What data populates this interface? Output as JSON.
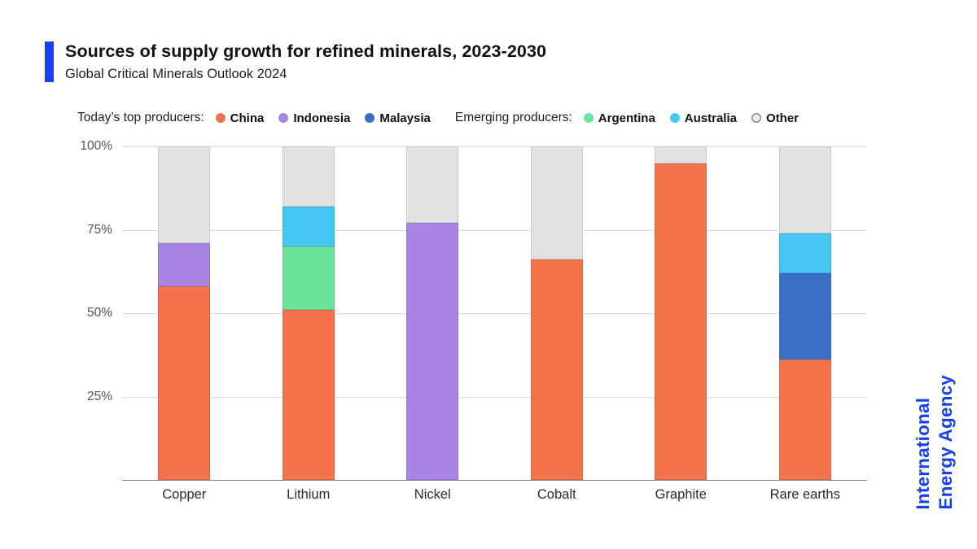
{
  "header": {
    "title": "Sources of supply growth for refined minerals, 2023-2030",
    "subtitle": "Global Critical Minerals Outlook 2024"
  },
  "legend": {
    "groups": [
      {
        "label": "Today’s top producers:",
        "items": [
          {
            "label": "China",
            "color": "#F4724C"
          },
          {
            "label": "Indonesia",
            "color": "#A885E3"
          },
          {
            "label": "Malaysia",
            "color": "#3A6FC8"
          }
        ]
      },
      {
        "label": "Emerging producers:",
        "items": [
          {
            "label": "Argentina",
            "color": "#6CE39A"
          },
          {
            "label": "Australia",
            "color": "#44C8F3"
          },
          {
            "label": "Other",
            "color": "#EDEDED",
            "border": "#8a8a8a"
          }
        ]
      }
    ]
  },
  "branding": {
    "line1": "International",
    "line2": "Energy Agency",
    "color": "#1640F0"
  },
  "chart_data": {
    "type": "bar",
    "stacked": true,
    "title": "Sources of supply growth for refined minerals, 2023-2030",
    "subtitle": "Global Critical Minerals Outlook 2024",
    "categories": [
      "Copper",
      "Lithium",
      "Nickel",
      "Cobalt",
      "Graphite",
      "Rare earths"
    ],
    "series": [
      {
        "name": "China",
        "group": "Today’s top producers",
        "color": "#F4724C",
        "values": [
          58,
          51,
          0,
          66,
          95,
          36
        ]
      },
      {
        "name": "Indonesia",
        "group": "Today’s top producers",
        "color": "#A885E3",
        "values": [
          13,
          0,
          77,
          0,
          0,
          0
        ]
      },
      {
        "name": "Malaysia",
        "group": "Today’s top producers",
        "color": "#3A6FC8",
        "values": [
          0,
          0,
          0,
          0,
          0,
          26
        ]
      },
      {
        "name": "Argentina",
        "group": "Emerging producers",
        "color": "#6CE39A",
        "values": [
          0,
          19,
          0,
          0,
          0,
          0
        ]
      },
      {
        "name": "Australia",
        "group": "Emerging producers",
        "color": "#44C8F3",
        "values": [
          0,
          12,
          0,
          0,
          0,
          12
        ]
      },
      {
        "name": "Other",
        "group": "Emerging producers",
        "color": "#E2E2E2",
        "values": [
          29,
          18,
          23,
          34,
          5,
          26
        ]
      }
    ],
    "units": "%",
    "ylim": [
      0,
      100
    ],
    "yticks": [
      "100%",
      "75%",
      "50%",
      "25%"
    ],
    "grid": true,
    "legend_position": "top"
  }
}
